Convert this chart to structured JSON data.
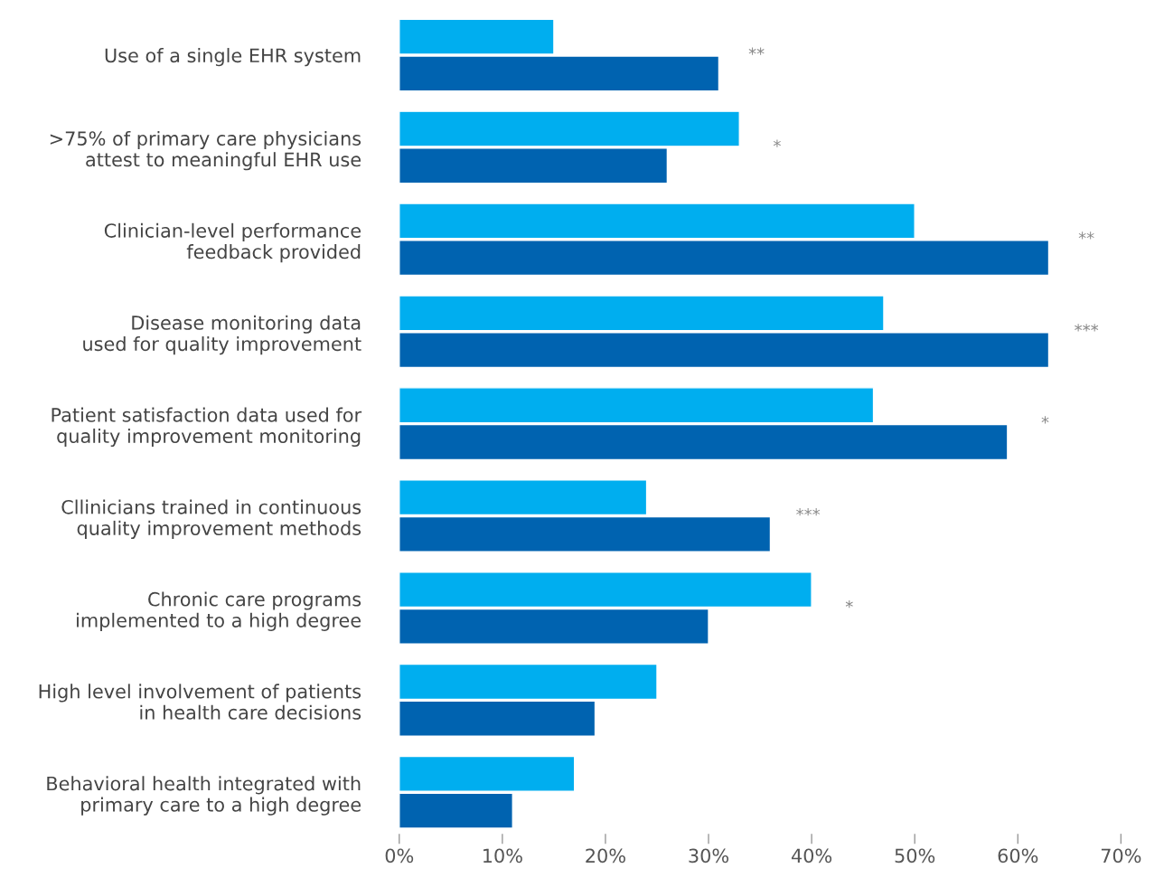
{
  "chart_data": {
    "type": "bar",
    "orientation": "horizontal",
    "categories": [
      "Use of a single EHR system",
      ">75% of primary care physicians\nattest to meaningful EHR use",
      "Clinician-level performance\nfeedback provided",
      "Disease monitoring data\nused for quality improvement",
      "Patient satisfaction data used for\nquality improvement monitoring",
      "Cllinicians trained in continuous\nquality improvement methods",
      "Chronic care programs\nimplemented to a high degree",
      "High level involvement of patients\nin health care decisions",
      "Behavioral health integrated with\nprimary care to a high degree"
    ],
    "series": [
      {
        "color": "#00aeef",
        "values": [
          15,
          33,
          50,
          47,
          46,
          24,
          40,
          25,
          17
        ]
      },
      {
        "color": "#0063b0",
        "values": [
          31,
          26,
          63,
          63,
          59,
          36,
          30,
          19,
          11
        ]
      }
    ],
    "xlim": [
      0,
      70
    ],
    "xticks": [
      {
        "value": 0,
        "label": "0%"
      },
      {
        "value": 10,
        "label": "10%"
      },
      {
        "value": 20,
        "label": "20%"
      },
      {
        "value": 30,
        "label": "30%"
      },
      {
        "value": 40,
        "label": "40%"
      },
      {
        "value": 50,
        "label": "50%"
      },
      {
        "value": 60,
        "label": "60%"
      },
      {
        "value": 70,
        "label": "70%"
      }
    ],
    "grid": false,
    "legend": false,
    "annotations": [
      "**",
      "*",
      "**",
      "***",
      "*",
      "***",
      "*"
    ]
  }
}
